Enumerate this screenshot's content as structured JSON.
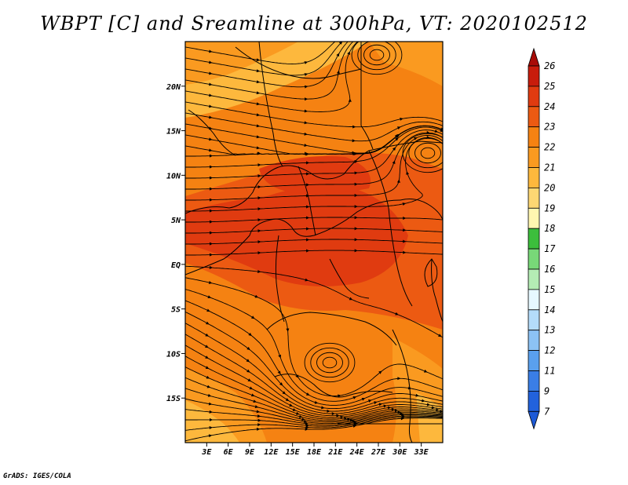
{
  "title": "WBPT [C] and Sreamline at 300hPa, VT: 2020102512",
  "credit": "GrADS: IGES/COLA",
  "map": {
    "lon_range": [
      0,
      36
    ],
    "lat_range": [
      -20,
      25
    ],
    "lat_ticks": [
      {
        "value": 20,
        "label": "20N"
      },
      {
        "value": 15,
        "label": "15N"
      },
      {
        "value": 10,
        "label": "10N"
      },
      {
        "value": 5,
        "label": "5N"
      },
      {
        "value": 0,
        "label": "EQ"
      },
      {
        "value": -5,
        "label": "5S"
      },
      {
        "value": -10,
        "label": "10S"
      },
      {
        "value": -15,
        "label": "15S"
      }
    ],
    "lon_ticks": [
      {
        "value": 3,
        "label": "3E"
      },
      {
        "value": 6,
        "label": "6E"
      },
      {
        "value": 9,
        "label": "9E"
      },
      {
        "value": 12,
        "label": "12E"
      },
      {
        "value": 15,
        "label": "15E"
      },
      {
        "value": 18,
        "label": "18E"
      },
      {
        "value": 21,
        "label": "21E"
      },
      {
        "value": 24,
        "label": "24E"
      },
      {
        "value": 27,
        "label": "27E"
      },
      {
        "value": 30,
        "label": "30E"
      },
      {
        "value": 33,
        "label": "33E"
      }
    ],
    "colors": {
      "c20": "#fdb83d",
      "c21": "#fa9a20",
      "c22": "#f58212",
      "c23": "#ec5a12",
      "c24": "#e03b10",
      "c25": "#c81c0c"
    }
  },
  "colorbar": {
    "levels": [
      {
        "label": "26",
        "color": "#a80c08"
      },
      {
        "label": "25",
        "color": "#c81c0c"
      },
      {
        "label": "24",
        "color": "#e03b10"
      },
      {
        "label": "23",
        "color": "#ec5a12"
      },
      {
        "label": "22",
        "color": "#f58212"
      },
      {
        "label": "21",
        "color": "#fa9a20"
      },
      {
        "label": "20",
        "color": "#fdb83d"
      },
      {
        "label": "19",
        "color": "#fdd773"
      },
      {
        "label": "18",
        "color": "#fff6b0"
      },
      {
        "label": "17",
        "color": "#3cbe3c"
      },
      {
        "label": "16",
        "color": "#78d878"
      },
      {
        "label": "15",
        "color": "#b4ecb4"
      },
      {
        "label": "14",
        "color": "#e6f8ff"
      },
      {
        "label": "13",
        "color": "#b4dcfa"
      },
      {
        "label": "12",
        "color": "#8cc2f4"
      },
      {
        "label": "11",
        "color": "#5aa0ee"
      },
      {
        "label": "9",
        "color": "#3a7ee6"
      },
      {
        "label": "7",
        "color": "#2262dc"
      }
    ],
    "bottom_color": "#1e5ad6"
  }
}
